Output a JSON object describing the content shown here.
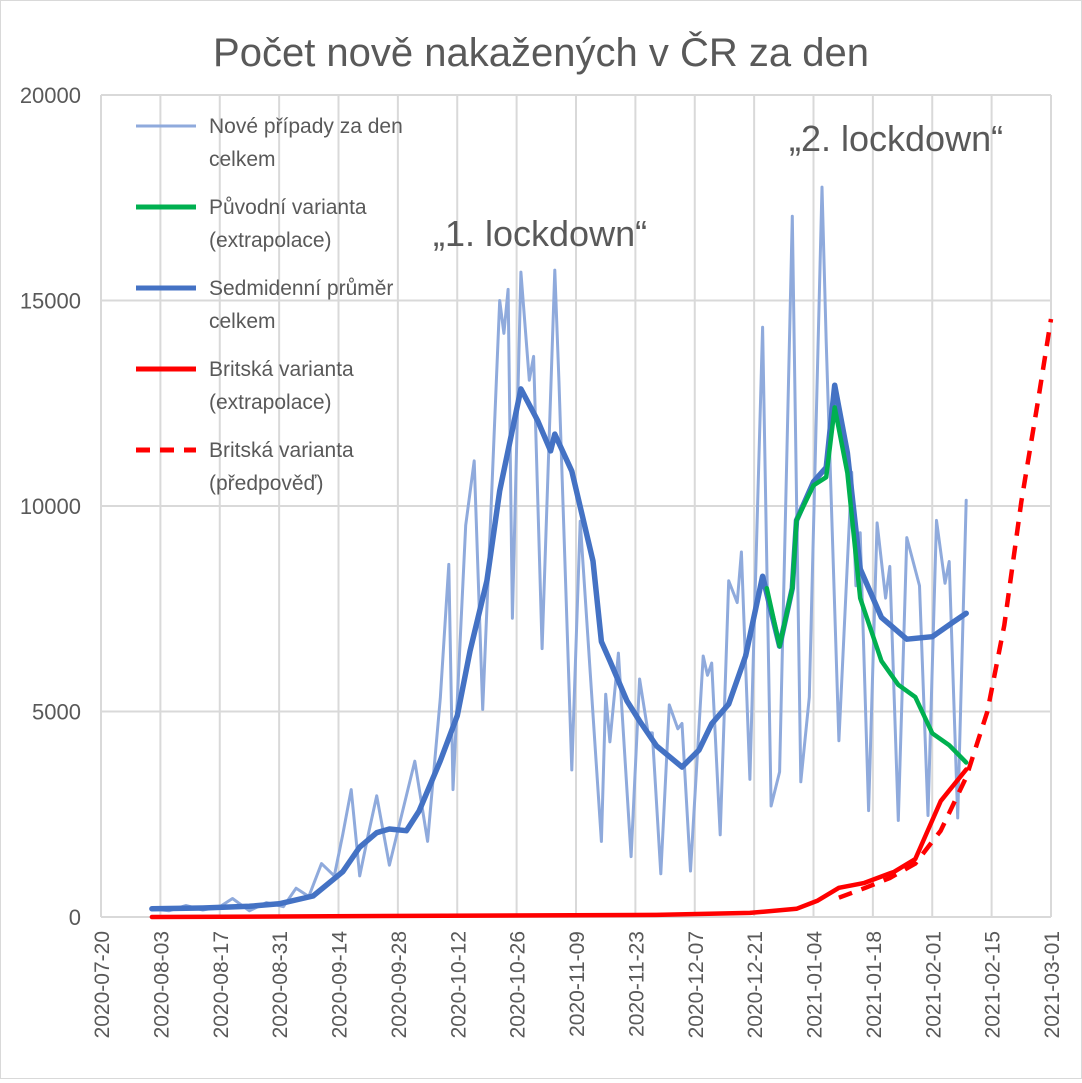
{
  "chart_data": {
    "type": "line",
    "title": "Počet nově nakažených v ČR za den",
    "xlabel": "",
    "ylabel": "",
    "ylim": [
      0,
      20000
    ],
    "yticks": [
      "0",
      "5000",
      "10000",
      "15000",
      "20000"
    ],
    "xlim": [
      "2020-07-20",
      "2021-03-01"
    ],
    "xticks": [
      "2020-07-20",
      "2020-08-03",
      "2020-08-17",
      "2020-08-31",
      "2020-09-14",
      "2020-09-28",
      "2020-10-12",
      "2020-10-26",
      "2020-11-09",
      "2020-11-23",
      "2020-12-07",
      "2020-12-21",
      "2021-01-04",
      "2021-01-18",
      "2021-02-01",
      "2021-02-15",
      "2021-03-01"
    ],
    "grid": true,
    "legend_position": "top-left",
    "annotations": [
      "„1. lockdown“",
      "„2. lockdown“"
    ],
    "colors": {
      "daily": "#8faadc",
      "avg": "#4472c4",
      "orig": "#00b050",
      "brit": "#ff0000"
    },
    "series": [
      {
        "name": "Nové případy za den celkem",
        "legend": [
          "Nové případy za den",
          "celkem"
        ],
        "key": "daily",
        "style": "solid",
        "points": [
          [
            "2020-08-01",
            200
          ],
          [
            "2020-08-05",
            150
          ],
          [
            "2020-08-09",
            280
          ],
          [
            "2020-08-13",
            170
          ],
          [
            "2020-08-17",
            250
          ],
          [
            "2020-08-20",
            450
          ],
          [
            "2020-08-24",
            150
          ],
          [
            "2020-08-28",
            350
          ],
          [
            "2020-09-01",
            250
          ],
          [
            "2020-09-04",
            700
          ],
          [
            "2020-09-07",
            500
          ],
          [
            "2020-09-10",
            1300
          ],
          [
            "2020-09-13",
            1000
          ],
          [
            "2020-09-15",
            2000
          ],
          [
            "2020-09-17",
            3100
          ],
          [
            "2020-09-19",
            1000
          ],
          [
            "2020-09-21",
            2000
          ],
          [
            "2020-09-23",
            2950
          ],
          [
            "2020-09-26",
            1260
          ],
          [
            "2020-10-02",
            3790
          ],
          [
            "2020-10-05",
            1840
          ],
          [
            "2020-10-08",
            5320
          ],
          [
            "2020-10-10",
            8580
          ],
          [
            "2020-10-11",
            3100
          ],
          [
            "2020-10-14",
            9530
          ],
          [
            "2020-10-16",
            11100
          ],
          [
            "2020-10-18",
            5050
          ],
          [
            "2020-10-22",
            15000
          ],
          [
            "2020-10-23",
            14200
          ],
          [
            "2020-10-24",
            15270
          ],
          [
            "2020-10-25",
            7270
          ],
          [
            "2020-10-27",
            15690
          ],
          [
            "2020-10-29",
            13060
          ],
          [
            "2020-10-30",
            13640
          ],
          [
            "2020-11-01",
            6530
          ],
          [
            "2020-11-04",
            15740
          ],
          [
            "2020-11-05",
            13000
          ],
          [
            "2020-11-08",
            3580
          ],
          [
            "2020-11-10",
            9630
          ],
          [
            "2020-11-15",
            1840
          ],
          [
            "2020-11-16",
            5420
          ],
          [
            "2020-11-17",
            4260
          ],
          [
            "2020-11-19",
            6420
          ],
          [
            "2020-11-22",
            1470
          ],
          [
            "2020-11-24",
            5790
          ],
          [
            "2020-11-26",
            4480
          ],
          [
            "2020-11-27",
            4480
          ],
          [
            "2020-11-29",
            1050
          ],
          [
            "2020-12-01",
            5160
          ],
          [
            "2020-12-03",
            4580
          ],
          [
            "2020-12-04",
            4710
          ],
          [
            "2020-12-06",
            1120
          ],
          [
            "2020-12-09",
            6350
          ],
          [
            "2020-12-10",
            5880
          ],
          [
            "2020-12-11",
            6180
          ],
          [
            "2020-12-13",
            2000
          ],
          [
            "2020-12-15",
            8180
          ],
          [
            "2020-12-17",
            7650
          ],
          [
            "2020-12-18",
            8880
          ],
          [
            "2020-12-20",
            3350
          ],
          [
            "2020-12-23",
            14350
          ],
          [
            "2020-12-25",
            2700
          ],
          [
            "2020-12-27",
            3530
          ],
          [
            "2020-12-30",
            17050
          ],
          [
            "2021-01-01",
            3290
          ],
          [
            "2021-01-03",
            5350
          ],
          [
            "2021-01-06",
            17760
          ],
          [
            "2021-01-07",
            14000
          ],
          [
            "2021-01-10",
            4290
          ],
          [
            "2021-01-13",
            10820
          ],
          [
            "2021-01-14",
            8060
          ],
          [
            "2021-01-15",
            9350
          ],
          [
            "2021-01-17",
            2590
          ],
          [
            "2021-01-19",
            9590
          ],
          [
            "2021-01-21",
            7760
          ],
          [
            "2021-01-22",
            8530
          ],
          [
            "2021-01-24",
            2350
          ],
          [
            "2021-01-26",
            9230
          ],
          [
            "2021-01-29",
            8060
          ],
          [
            "2021-01-31",
            2470
          ],
          [
            "2021-02-02",
            9650
          ],
          [
            "2021-02-04",
            8120
          ],
          [
            "2021-02-05",
            8650
          ],
          [
            "2021-02-07",
            2410
          ],
          [
            "2021-02-09",
            10140
          ]
        ]
      },
      {
        "name": "Původní varianta (extrapolace)",
        "legend": [
          "Původní varianta",
          "(extrapolace)"
        ],
        "key": "orig",
        "style": "solid",
        "points": [
          [
            "2020-12-24",
            8000
          ],
          [
            "2020-12-27",
            6590
          ],
          [
            "2020-12-30",
            8000
          ],
          [
            "2020-12-31",
            9650
          ],
          [
            "2021-01-04",
            10500
          ],
          [
            "2021-01-07",
            10700
          ],
          [
            "2021-01-09",
            12400
          ],
          [
            "2021-01-12",
            10800
          ],
          [
            "2021-01-15",
            7760
          ],
          [
            "2021-01-20",
            6230
          ],
          [
            "2021-01-24",
            5650
          ],
          [
            "2021-01-28",
            5350
          ],
          [
            "2021-02-01",
            4470
          ],
          [
            "2021-02-05",
            4180
          ],
          [
            "2021-02-09",
            3760
          ]
        ]
      },
      {
        "name": "Sedmidenní průměr celkem",
        "legend": [
          "Sedmidenní průměr",
          "celkem"
        ],
        "key": "avg",
        "style": "solid",
        "points": [
          [
            "2020-08-01",
            200
          ],
          [
            "2020-08-13",
            220
          ],
          [
            "2020-08-24",
            260
          ],
          [
            "2020-08-31",
            320
          ],
          [
            "2020-09-08",
            510
          ],
          [
            "2020-09-15",
            1100
          ],
          [
            "2020-09-19",
            1700
          ],
          [
            "2020-09-23",
            2050
          ],
          [
            "2020-09-26",
            2140
          ],
          [
            "2020-09-30",
            2100
          ],
          [
            "2020-10-03",
            2580
          ],
          [
            "2020-10-08",
            3800
          ],
          [
            "2020-10-12",
            4900
          ],
          [
            "2020-10-15",
            6470
          ],
          [
            "2020-10-19",
            8180
          ],
          [
            "2020-10-22",
            10370
          ],
          [
            "2020-10-27",
            12850
          ],
          [
            "2020-10-31",
            12070
          ],
          [
            "2020-11-03",
            11340
          ],
          [
            "2020-11-04",
            11750
          ],
          [
            "2020-11-08",
            10850
          ],
          [
            "2020-11-13",
            8660
          ],
          [
            "2020-11-15",
            6700
          ],
          [
            "2020-11-17",
            6230
          ],
          [
            "2020-11-21",
            5260
          ],
          [
            "2020-11-24",
            4770
          ],
          [
            "2020-11-28",
            4160
          ],
          [
            "2020-12-04",
            3650
          ],
          [
            "2020-12-08",
            4060
          ],
          [
            "2020-12-11",
            4700
          ],
          [
            "2020-12-15",
            5180
          ],
          [
            "2020-12-19",
            6350
          ],
          [
            "2020-12-23",
            8290
          ],
          [
            "2020-12-27",
            6590
          ],
          [
            "2020-12-30",
            8000
          ],
          [
            "2020-12-31",
            9650
          ],
          [
            "2021-01-04",
            10590
          ],
          [
            "2021-01-07",
            10940
          ],
          [
            "2021-01-09",
            12940
          ],
          [
            "2021-01-12",
            11290
          ],
          [
            "2021-01-15",
            8470
          ],
          [
            "2021-01-20",
            7290
          ],
          [
            "2021-01-26",
            6760
          ],
          [
            "2021-02-01",
            6820
          ],
          [
            "2021-02-06",
            7180
          ],
          [
            "2021-02-09",
            7390
          ]
        ]
      },
      {
        "name": "Britská varianta (extrapolace)",
        "legend": [
          "Britská varianta",
          "(extrapolace)"
        ],
        "key": "brit",
        "style": "solid",
        "points": [
          [
            "2020-08-01",
            0
          ],
          [
            "2020-11-28",
            50
          ],
          [
            "2020-12-20",
            100
          ],
          [
            "2020-12-31",
            200
          ],
          [
            "2021-01-05",
            400
          ],
          [
            "2021-01-10",
            710
          ],
          [
            "2021-01-16",
            830
          ],
          [
            "2021-01-23",
            1100
          ],
          [
            "2021-01-28",
            1410
          ],
          [
            "2021-02-03",
            2820
          ],
          [
            "2021-02-09",
            3590
          ]
        ]
      },
      {
        "name": "Britská varianta (předpověď)",
        "legend": [
          "Britská varianta",
          "(předpověď)"
        ],
        "key": "brit",
        "style": "dashed",
        "points": [
          [
            "2021-01-10",
            470
          ],
          [
            "2021-01-16",
            700
          ],
          [
            "2021-01-22",
            950
          ],
          [
            "2021-01-28",
            1300
          ],
          [
            "2021-02-03",
            2100
          ],
          [
            "2021-02-09",
            3400
          ],
          [
            "2021-02-14",
            5000
          ],
          [
            "2021-02-18",
            7100
          ],
          [
            "2021-02-22",
            10100
          ],
          [
            "2021-02-26",
            12600
          ],
          [
            "2021-03-01",
            14550
          ]
        ]
      }
    ]
  }
}
